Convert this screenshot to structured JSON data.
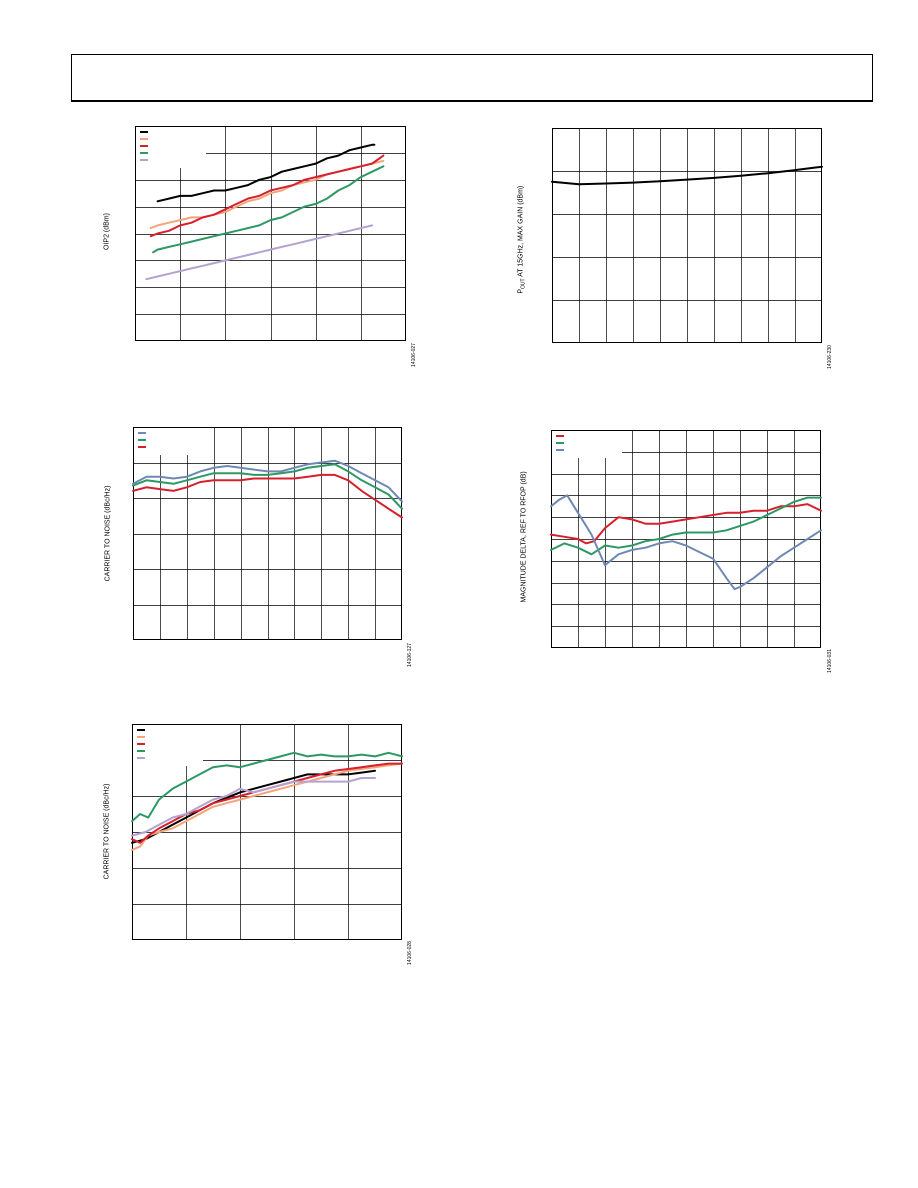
{
  "page": {
    "header": ""
  },
  "chart_data": [
    {
      "id": "c1",
      "type": "line",
      "ylabel": "OIP2 (dBm)",
      "figure_id": "14106-027",
      "x": [
        0,
        1,
        2,
        3,
        4,
        5,
        6,
        7,
        8,
        9,
        10,
        11,
        12
      ],
      "xlim": [
        0,
        12
      ],
      "ylim": [
        0,
        8
      ],
      "x_divisions": 6,
      "y_divisions": 8,
      "grid": true,
      "legend_placement": "top-left",
      "series": [
        {
          "color": "#000000",
          "x": [
            1.0,
            1.5,
            2.0,
            2.5,
            3.0,
            3.5,
            4.0,
            4.5,
            5.0,
            5.5,
            6.0,
            6.5,
            7.0,
            7.5,
            8.0,
            8.5,
            9.0,
            9.5,
            10.0,
            10.5,
            10.6
          ],
          "values": [
            5.2,
            5.3,
            5.4,
            5.4,
            5.5,
            5.6,
            5.6,
            5.7,
            5.8,
            6.0,
            6.1,
            6.3,
            6.4,
            6.5,
            6.6,
            6.8,
            6.9,
            7.1,
            7.2,
            7.3,
            7.3
          ]
        },
        {
          "color": "#f4a47a",
          "x": [
            0.7,
            1.0,
            1.5,
            2.0,
            2.5,
            3.0,
            3.5,
            4.0,
            4.5,
            5.0,
            5.5,
            6.0,
            6.5,
            7.0,
            7.5,
            8.0,
            8.5,
            9.0,
            9.5,
            10.0,
            10.5,
            11.0
          ],
          "values": [
            4.2,
            4.3,
            4.4,
            4.5,
            4.6,
            4.6,
            4.7,
            4.8,
            5.0,
            5.2,
            5.3,
            5.5,
            5.6,
            5.8,
            5.9,
            6.0,
            6.2,
            6.3,
            6.4,
            6.5,
            6.6,
            6.7
          ]
        },
        {
          "color": "#d7202e",
          "x": [
            0.7,
            1.0,
            1.5,
            2.0,
            2.5,
            3.0,
            3.5,
            4.0,
            4.5,
            5.0,
            5.5,
            6.0,
            6.5,
            7.0,
            7.5,
            8.0,
            8.5,
            9.0,
            9.5,
            10.0,
            10.5,
            11.0
          ],
          "values": [
            3.9,
            4.0,
            4.1,
            4.3,
            4.4,
            4.6,
            4.7,
            4.9,
            5.1,
            5.3,
            5.4,
            5.6,
            5.7,
            5.8,
            6.0,
            6.1,
            6.2,
            6.3,
            6.4,
            6.5,
            6.6,
            6.9
          ]
        },
        {
          "color": "#2e9865",
          "x": [
            0.8,
            1.0,
            1.5,
            2.0,
            2.5,
            3.0,
            3.5,
            4.0,
            4.5,
            5.0,
            5.5,
            6.0,
            6.5,
            7.0,
            7.5,
            8.0,
            8.5,
            9.0,
            9.5,
            10.0,
            10.5,
            11.0
          ],
          "values": [
            3.3,
            3.4,
            3.5,
            3.6,
            3.7,
            3.8,
            3.9,
            4.0,
            4.1,
            4.2,
            4.3,
            4.5,
            4.6,
            4.8,
            5.0,
            5.1,
            5.3,
            5.6,
            5.8,
            6.1,
            6.3,
            6.5
          ]
        },
        {
          "color": "#b4a2d1",
          "x": [
            0.5,
            1.0,
            1.5,
            2.0,
            2.5,
            3.0,
            3.5,
            4.0,
            4.5,
            5.0,
            5.5,
            6.0,
            6.5,
            7.0,
            7.5,
            8.0,
            8.5,
            9.0,
            9.5,
            10.0,
            10.5
          ],
          "values": [
            2.3,
            2.4,
            2.5,
            2.6,
            2.7,
            2.8,
            2.9,
            3.0,
            3.1,
            3.2,
            3.3,
            3.4,
            3.5,
            3.6,
            3.7,
            3.8,
            3.9,
            4.0,
            4.1,
            4.2,
            4.3
          ]
        }
      ]
    },
    {
      "id": "c2",
      "type": "line",
      "ylabel_main": "P",
      "ylabel_sub": "OUT",
      "ylabel_rest": " AT 15GHz, MAX GAIN (dBm)",
      "figure_id": "14106-230",
      "xlim": [
        0,
        10
      ],
      "ylim": [
        0,
        5
      ],
      "x_divisions": 10,
      "y_divisions": 5,
      "grid": true,
      "series": [
        {
          "color": "#000000",
          "x": [
            0,
            0.5,
            1,
            1.5,
            2,
            3,
            4,
            5,
            6,
            7,
            8,
            9,
            9.5,
            10
          ],
          "values": [
            3.75,
            3.72,
            3.69,
            3.7,
            3.71,
            3.73,
            3.76,
            3.8,
            3.84,
            3.89,
            3.95,
            4.02,
            4.06,
            4.1
          ]
        }
      ]
    },
    {
      "id": "c3",
      "type": "line",
      "ylabel": "CARRIER TO NOISE (dBc/Hz)",
      "figure_id": "14106-127",
      "xlim": [
        0,
        10
      ],
      "ylim": [
        0,
        6
      ],
      "x_divisions": 10,
      "y_divisions": 6,
      "grid": true,
      "legend_placement": "top-left",
      "series": [
        {
          "color": "#6f89b5",
          "x": [
            0,
            0.5,
            1,
            1.5,
            2,
            2.5,
            3,
            3.5,
            4,
            4.5,
            5,
            5.5,
            6,
            6.5,
            7,
            7.5,
            8,
            8.5,
            9,
            9.5,
            10
          ],
          "values": [
            4.4,
            4.6,
            4.6,
            4.55,
            4.6,
            4.75,
            4.85,
            4.9,
            4.85,
            4.8,
            4.75,
            4.75,
            4.85,
            4.95,
            5.0,
            5.05,
            4.9,
            4.7,
            4.5,
            4.3,
            3.9
          ]
        },
        {
          "color": "#2e9865",
          "x": [
            0,
            0.5,
            1,
            1.5,
            2,
            2.5,
            3,
            3.5,
            4,
            4.5,
            5,
            5.5,
            6,
            6.5,
            7,
            7.5,
            8,
            8.5,
            9,
            9.5,
            10
          ],
          "values": [
            4.35,
            4.5,
            4.45,
            4.4,
            4.5,
            4.6,
            4.7,
            4.7,
            4.7,
            4.65,
            4.65,
            4.7,
            4.75,
            4.85,
            4.9,
            4.95,
            4.75,
            4.5,
            4.3,
            4.1,
            3.7
          ]
        },
        {
          "color": "#d7202e",
          "x": [
            0,
            0.5,
            1,
            1.5,
            2,
            2.5,
            3,
            3.5,
            4,
            4.5,
            5,
            5.5,
            6,
            6.5,
            7,
            7.5,
            8,
            8.5,
            9,
            9.5,
            10
          ],
          "values": [
            4.2,
            4.3,
            4.25,
            4.2,
            4.3,
            4.45,
            4.5,
            4.5,
            4.5,
            4.55,
            4.55,
            4.55,
            4.55,
            4.6,
            4.65,
            4.65,
            4.5,
            4.2,
            3.95,
            3.7,
            3.45
          ]
        }
      ]
    },
    {
      "id": "c4",
      "type": "line",
      "ylabel": "MAGNITUDE DELTA, REF TO RFOP (dB)",
      "figure_id": "14106-031",
      "xlim": [
        0,
        10
      ],
      "ylim": [
        0,
        10
      ],
      "x_divisions": 10,
      "y_divisions": 10,
      "grid": true,
      "legend_placement": "top-left",
      "series": [
        {
          "color": "#d7202e",
          "x": [
            0,
            0.5,
            1,
            1.3,
            1.6,
            2.0,
            2.5,
            3.0,
            3.5,
            4.0,
            4.5,
            5.0,
            5.5,
            6.0,
            6.5,
            7.0,
            7.5,
            8.0,
            8.5,
            9.0,
            9.5,
            10.0
          ],
          "values": [
            5.2,
            5.1,
            5.0,
            4.8,
            4.9,
            5.5,
            6.0,
            5.9,
            5.7,
            5.7,
            5.8,
            5.9,
            6.0,
            6.1,
            6.2,
            6.2,
            6.3,
            6.3,
            6.5,
            6.5,
            6.6,
            6.3
          ]
        },
        {
          "color": "#2e9865",
          "x": [
            0,
            0.5,
            1,
            1.5,
            2.0,
            2.5,
            3.0,
            3.5,
            4.0,
            4.5,
            5.0,
            5.5,
            6.0,
            6.5,
            7.0,
            7.5,
            8.0,
            8.5,
            9.0,
            9.5,
            10.0
          ],
          "values": [
            4.5,
            4.8,
            4.6,
            4.3,
            4.7,
            4.6,
            4.7,
            4.9,
            5.0,
            5.2,
            5.3,
            5.3,
            5.3,
            5.4,
            5.6,
            5.8,
            6.1,
            6.4,
            6.7,
            6.9,
            6.9
          ]
        },
        {
          "color": "#6f89b5",
          "x": [
            0,
            0.3,
            0.6,
            1.0,
            1.5,
            2.0,
            2.5,
            3.0,
            3.5,
            4.0,
            4.5,
            5.0,
            5.5,
            6.0,
            6.5,
            6.8,
            7.0,
            7.5,
            8.0,
            8.5,
            9.0,
            9.5,
            10.0
          ],
          "values": [
            6.5,
            6.8,
            7.0,
            6.2,
            5.2,
            3.8,
            4.3,
            4.5,
            4.6,
            4.8,
            4.9,
            4.7,
            4.4,
            4.1,
            3.2,
            2.7,
            2.8,
            3.2,
            3.7,
            4.2,
            4.6,
            5.0,
            5.4
          ]
        }
      ]
    },
    {
      "id": "c5",
      "type": "line",
      "ylabel": "CARRIER TO NOISE (dBc/Hz)",
      "figure_id": "14106-028",
      "xlim": [
        0,
        10
      ],
      "ylim": [
        0,
        6
      ],
      "x_divisions": 5,
      "y_divisions": 6,
      "grid": true,
      "legend_placement": "top-left",
      "series": [
        {
          "color": "#000000",
          "x": [
            0,
            0.5,
            1,
            1.5,
            2,
            2.5,
            3,
            3.5,
            4,
            4.5,
            5,
            5.5,
            6,
            6.5,
            7,
            7.5,
            8,
            8.5,
            9
          ],
          "values": [
            2.7,
            2.8,
            3.0,
            3.2,
            3.4,
            3.6,
            3.8,
            3.95,
            4.1,
            4.2,
            4.3,
            4.4,
            4.5,
            4.6,
            4.6,
            4.6,
            4.6,
            4.65,
            4.7
          ]
        },
        {
          "color": "#f4a47a",
          "x": [
            0,
            0.3,
            0.6,
            1,
            1.5,
            2,
            2.5,
            3,
            3.5,
            4,
            4.5,
            5,
            5.5,
            6,
            6.5,
            7,
            7.5,
            8,
            8.5,
            9,
            9.5,
            10
          ],
          "values": [
            2.5,
            2.6,
            2.9,
            3.0,
            3.1,
            3.3,
            3.5,
            3.7,
            3.8,
            3.9,
            4.0,
            4.1,
            4.2,
            4.3,
            4.4,
            4.5,
            4.6,
            4.7,
            4.75,
            4.8,
            4.85,
            4.9
          ]
        },
        {
          "color": "#d7202e",
          "x": [
            0,
            0.3,
            0.6,
            1,
            1.5,
            2,
            2.5,
            3,
            3.5,
            4,
            4.5,
            5,
            5.5,
            6,
            6.5,
            7,
            7.5,
            8,
            8.5,
            9,
            9.5,
            10
          ],
          "values": [
            2.8,
            2.7,
            2.9,
            3.1,
            3.3,
            3.5,
            3.6,
            3.8,
            3.9,
            4.0,
            4.1,
            4.2,
            4.3,
            4.4,
            4.5,
            4.6,
            4.7,
            4.75,
            4.8,
            4.85,
            4.9,
            4.9
          ]
        },
        {
          "color": "#2e9865",
          "x": [
            0,
            0.3,
            0.6,
            1,
            1.5,
            2,
            2.5,
            3,
            3.5,
            4,
            4.5,
            5,
            5.5,
            6,
            6.5,
            7,
            7.5,
            8,
            8.5,
            9,
            9.5,
            10
          ],
          "values": [
            3.3,
            3.5,
            3.4,
            3.9,
            4.2,
            4.4,
            4.6,
            4.8,
            4.85,
            4.8,
            4.9,
            5.0,
            5.1,
            5.2,
            5.1,
            5.15,
            5.1,
            5.1,
            5.15,
            5.1,
            5.2,
            5.1
          ]
        },
        {
          "color": "#b4a2d1",
          "x": [
            0,
            0.5,
            1,
            1.5,
            2,
            2.5,
            3,
            3.5,
            4,
            4.5,
            5,
            5.5,
            6,
            6.5,
            7,
            7.5,
            8,
            8.5,
            9
          ],
          "values": [
            2.9,
            3.0,
            3.2,
            3.4,
            3.5,
            3.7,
            3.9,
            4.0,
            4.2,
            4.1,
            4.2,
            4.3,
            4.4,
            4.4,
            4.4,
            4.4,
            4.4,
            4.5,
            4.5
          ]
        }
      ]
    }
  ]
}
